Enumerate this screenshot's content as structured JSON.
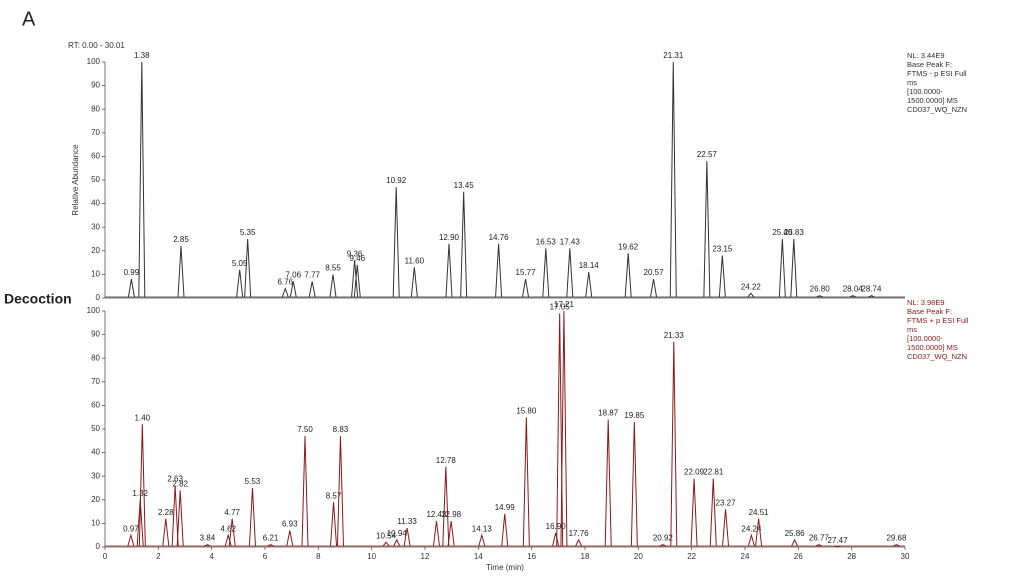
{
  "panel_label": "A",
  "range_text": "RT: 0.00 - 30.01",
  "side_label": "Decoction",
  "chart_data": [
    {
      "type": "chromatogram",
      "y_label": "Relative Abundance",
      "color": "#333333",
      "info": [
        "NL: 3.44E9",
        "Base Peak F:",
        "FTMS - p ESI Full",
        "ms",
        "[100.0000-",
        "1500.0000] MS",
        "CD037_WQ_NZN"
      ],
      "x": [
        0.99,
        1.38,
        2.85,
        5.05,
        5.35,
        6.76,
        7.06,
        7.77,
        8.55,
        9.36,
        9.46,
        10.92,
        11.6,
        12.9,
        13.45,
        14.76,
        15.77,
        16.53,
        17.43,
        18.14,
        19.62,
        20.57,
        21.31,
        22.57,
        23.15,
        24.22,
        25.4,
        25.83,
        26.8,
        28.04,
        28.74
      ],
      "values": [
        8,
        100,
        22,
        12,
        25,
        4,
        7,
        7,
        10,
        16,
        14,
        47,
        13,
        23,
        45,
        23,
        8,
        21,
        21,
        11,
        19,
        8,
        100,
        58,
        18,
        2,
        25,
        25,
        1,
        1,
        1
      ],
      "labels": [
        "0.99",
        "1.38",
        "2.85",
        "5.05",
        "5.35",
        "6.76",
        "7.06",
        "7.77",
        "8.55",
        "9.36",
        "9.46",
        "10.92",
        "11.60",
        "12.90",
        "13.45",
        "14.76",
        "15.77",
        "16.53",
        "17.43",
        "18.14",
        "19.62",
        "20.57",
        "21.31",
        "22.57",
        "23.15",
        "24.22",
        "25.40",
        "25.83",
        "26.80",
        "28.04",
        "28.74"
      ],
      "xlim": [
        0,
        30
      ],
      "ylim": [
        0,
        100
      ],
      "yticks": [
        0,
        10,
        20,
        30,
        40,
        50,
        60,
        70,
        80,
        90,
        100
      ]
    },
    {
      "type": "chromatogram",
      "x_label": "Time (min)",
      "color": "#8b1a1a",
      "info": [
        "NL: 3.98E9",
        "Base Peak F:",
        "FTMS + p ESI Full",
        "ms",
        "[100.0000-",
        "1500.0000] MS",
        "CD037_WQ_NZN"
      ],
      "x": [
        0.97,
        1.32,
        1.4,
        2.28,
        2.63,
        2.82,
        3.84,
        4.62,
        4.77,
        5.53,
        6.21,
        6.93,
        7.5,
        8.57,
        8.83,
        10.54,
        10.94,
        11.33,
        12.43,
        12.78,
        12.98,
        14.13,
        14.99,
        15.8,
        16.9,
        17.05,
        17.21,
        17.76,
        18.87,
        19.85,
        20.92,
        21.33,
        22.09,
        22.81,
        23.27,
        24.24,
        24.51,
        25.86,
        26.77,
        27.47,
        29.68
      ],
      "values": [
        5,
        20,
        52,
        12,
        26,
        24,
        1,
        5,
        12,
        25,
        1,
        7,
        47,
        19,
        47,
        2,
        3,
        8,
        11,
        34,
        11,
        5,
        14,
        55,
        6,
        99,
        100,
        3,
        54,
        53,
        1,
        87,
        29,
        29,
        16,
        5,
        12,
        3,
        1,
        0,
        1
      ],
      "labels": [
        "0.97",
        "1.32",
        "1.40",
        "2.28",
        "2.63",
        "2.82",
        "3.84",
        "4.62",
        "4.77",
        "5.53",
        "6.21",
        "6.93",
        "7.50",
        "8.57",
        "8.83",
        "10.54",
        "10.94",
        "11.33",
        "12.43",
        "12.78",
        "12.98",
        "14.13",
        "14.99",
        "15.80",
        "16.90",
        "17.05",
        "17.21",
        "17.76",
        "18.87",
        "19.85",
        "20.92",
        "21.33",
        "22.09",
        "22.81",
        "23.27",
        "24.24",
        "24.51",
        "25.86",
        "26.77",
        "27.47",
        "29.68"
      ],
      "xlim": [
        0,
        30
      ],
      "ylim": [
        0,
        100
      ],
      "yticks": [
        0,
        10,
        20,
        30,
        40,
        50,
        60,
        70,
        80,
        90,
        100
      ],
      "xticks": [
        0,
        2,
        4,
        6,
        8,
        10,
        12,
        14,
        16,
        18,
        20,
        22,
        24,
        26,
        28,
        30
      ]
    }
  ]
}
